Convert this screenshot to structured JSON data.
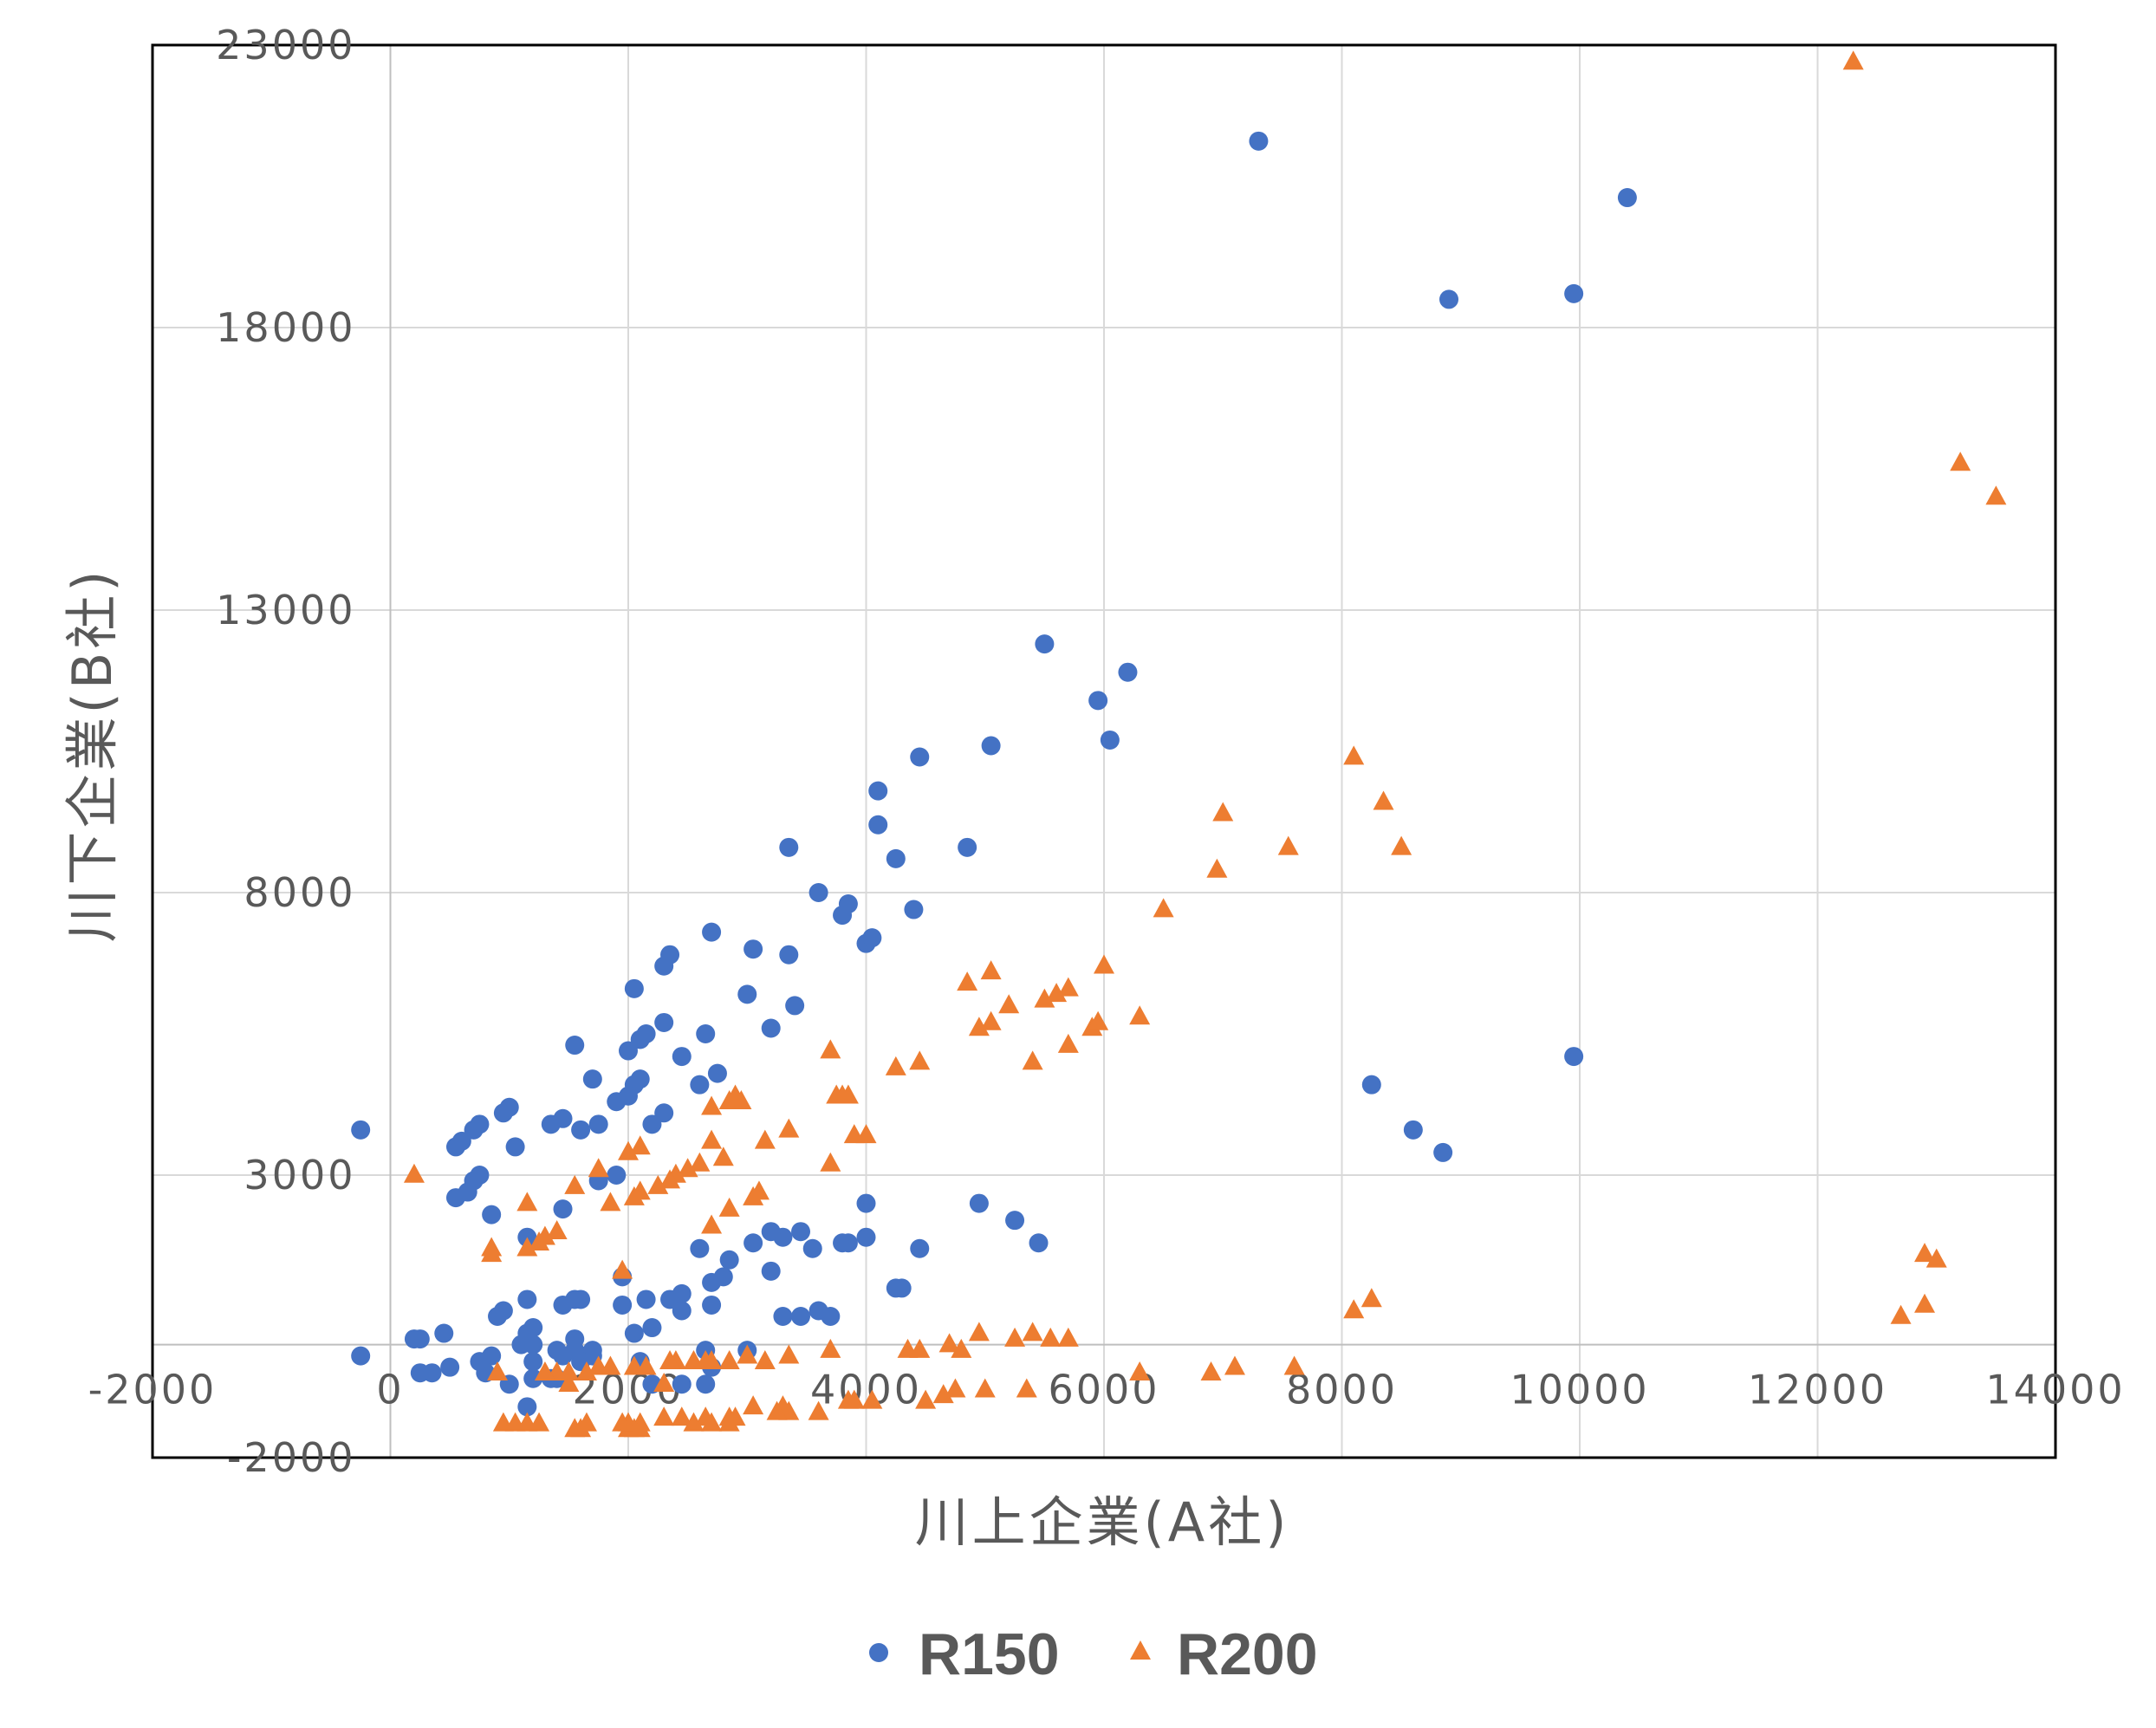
{
  "chart_data": {
    "type": "scatter",
    "title": "",
    "xlabel": "川上企業(A社)",
    "ylabel": "川下企業(B社)",
    "xlim": [
      -2000,
      14000
    ],
    "ylim": [
      -2000,
      23000
    ],
    "x_ticks": [
      -2000,
      0,
      2000,
      4000,
      6000,
      8000,
      10000,
      12000,
      14000
    ],
    "y_ticks": [
      -2000,
      3000,
      8000,
      13000,
      18000,
      23000
    ],
    "x_tick_labels": [
      "-2000",
      "0",
      "2000",
      "4000",
      "6000",
      "8000",
      "10000",
      "12000",
      "14000"
    ],
    "y_tick_labels": [
      "-2000",
      "3000",
      "8000",
      "13000",
      "18000",
      "23000"
    ],
    "grid": true,
    "legend_position": "bottom",
    "colors": {
      "R150": "#4472C4",
      "R200": "#ED7D31"
    },
    "series": [
      {
        "name": "R150",
        "marker": "circle",
        "points": [
          [
            7300,
            21300
          ],
          [
            10400,
            20300
          ],
          [
            9950,
            18600
          ],
          [
            8900,
            18500
          ],
          [
            5500,
            12400
          ],
          [
            6200,
            11900
          ],
          [
            5950,
            11400
          ],
          [
            6050,
            10700
          ],
          [
            5050,
            10600
          ],
          [
            4450,
            10400
          ],
          [
            4100,
            9800
          ],
          [
            4100,
            9200
          ],
          [
            4850,
            8800
          ],
          [
            4250,
            8600
          ],
          [
            3350,
            8800
          ],
          [
            3600,
            8000
          ],
          [
            3850,
            7800
          ],
          [
            3800,
            7600
          ],
          [
            4400,
            7700
          ],
          [
            4000,
            7100
          ],
          [
            4050,
            7200
          ],
          [
            3350,
            6900
          ],
          [
            3050,
            7000
          ],
          [
            2700,
            7300
          ],
          [
            2350,
            6900
          ],
          [
            2300,
            6700
          ],
          [
            2050,
            6300
          ],
          [
            3000,
            6200
          ],
          [
            3400,
            6000
          ],
          [
            3200,
            5600
          ],
          [
            2650,
            5500
          ],
          [
            2300,
            5700
          ],
          [
            2150,
            5500
          ],
          [
            2100,
            5400
          ],
          [
            2000,
            5200
          ],
          [
            2450,
            5100
          ],
          [
            1550,
            5300
          ],
          [
            2600,
            4600
          ],
          [
            2750,
            4800
          ],
          [
            2050,
            4600
          ],
          [
            1700,
            4700
          ],
          [
            2100,
            4700
          ],
          [
            2000,
            4400
          ],
          [
            1900,
            4300
          ],
          [
            2300,
            4100
          ],
          [
            2200,
            3900
          ],
          [
            1750,
            3900
          ],
          [
            1600,
            3800
          ],
          [
            1450,
            4000
          ],
          [
            1350,
            3900
          ],
          [
            1000,
            4200
          ],
          [
            950,
            4100
          ],
          [
            750,
            3900
          ],
          [
            700,
            3800
          ],
          [
            600,
            3600
          ],
          [
            550,
            3500
          ],
          [
            1050,
            3500
          ],
          [
            -250,
            3800
          ],
          [
            1900,
            3000
          ],
          [
            1750,
            2900
          ],
          [
            750,
            3000
          ],
          [
            700,
            2900
          ],
          [
            650,
            2700
          ],
          [
            550,
            2600
          ],
          [
            850,
            2300
          ],
          [
            1450,
            2400
          ],
          [
            1150,
            1900
          ],
          [
            2600,
            1700
          ],
          [
            2850,
            1500
          ],
          [
            3050,
            1800
          ],
          [
            3300,
            1900
          ],
          [
            3450,
            2000
          ],
          [
            3200,
            2000
          ],
          [
            3550,
            1700
          ],
          [
            3800,
            1800
          ],
          [
            3850,
            1800
          ],
          [
            4000,
            1900
          ],
          [
            3200,
            1300
          ],
          [
            2700,
            1100
          ],
          [
            2800,
            1200
          ],
          [
            1950,
            1200
          ],
          [
            4000,
            2500
          ],
          [
            4950,
            2500
          ],
          [
            5250,
            2200
          ],
          [
            5450,
            1800
          ],
          [
            4450,
            1700
          ],
          [
            4300,
            1000
          ],
          [
            4250,
            1000
          ],
          [
            1950,
            700
          ],
          [
            2150,
            800
          ],
          [
            2350,
            800
          ],
          [
            2450,
            900
          ],
          [
            2700,
            700
          ],
          [
            2450,
            600
          ],
          [
            1150,
            800
          ],
          [
            1600,
            800
          ],
          [
            1550,
            800
          ],
          [
            1450,
            700
          ],
          [
            950,
            600
          ],
          [
            900,
            500
          ],
          [
            1200,
            300
          ],
          [
            3300,
            500
          ],
          [
            3450,
            500
          ],
          [
            3600,
            600
          ],
          [
            3700,
            500
          ],
          [
            2050,
            200
          ],
          [
            2200,
            300
          ],
          [
            1700,
            -100
          ],
          [
            1550,
            -100
          ],
          [
            1400,
            -100
          ],
          [
            1700,
            -200
          ],
          [
            1550,
            100
          ],
          [
            1450,
            -200
          ],
          [
            1600,
            -300
          ],
          [
            850,
            -200
          ],
          [
            750,
            -300
          ],
          [
            500,
            -400
          ],
          [
            350,
            -500
          ],
          [
            250,
            -500
          ],
          [
            1200,
            0
          ],
          [
            1150,
            200
          ],
          [
            1100,
            0
          ],
          [
            800,
            -500
          ],
          [
            450,
            200
          ],
          [
            250,
            100
          ],
          [
            200,
            100
          ],
          [
            -250,
            -200
          ],
          [
            1150,
            -1100
          ],
          [
            1200,
            -600
          ],
          [
            1000,
            -700
          ],
          [
            1400,
            -600
          ],
          [
            1350,
            -600
          ],
          [
            2200,
            -700
          ],
          [
            2450,
            -700
          ],
          [
            2650,
            -700
          ],
          [
            2700,
            -400
          ],
          [
            2100,
            -300
          ],
          [
            3000,
            -100
          ],
          [
            2650,
            -100
          ],
          [
            8250,
            4600
          ],
          [
            8600,
            3800
          ],
          [
            8850,
            3400
          ],
          [
            9950,
            5100
          ],
          [
            1200,
            -300
          ]
        ]
      },
      {
        "name": "R200",
        "marker": "triangle",
        "points": [
          [
            12300,
            22700
          ],
          [
            13200,
            15600
          ],
          [
            13500,
            15000
          ],
          [
            8100,
            10400
          ],
          [
            8350,
            9600
          ],
          [
            8500,
            8800
          ],
          [
            7000,
            9400
          ],
          [
            6950,
            8400
          ],
          [
            7550,
            8800
          ],
          [
            6500,
            7700
          ],
          [
            6000,
            6700
          ],
          [
            5700,
            6300
          ],
          [
            5600,
            6200
          ],
          [
            5500,
            6100
          ],
          [
            5200,
            6000
          ],
          [
            5050,
            6600
          ],
          [
            4850,
            6400
          ],
          [
            5050,
            5700
          ],
          [
            4950,
            5600
          ],
          [
            5400,
            5000
          ],
          [
            5700,
            5300
          ],
          [
            5900,
            5600
          ],
          [
            5950,
            5700
          ],
          [
            6300,
            5800
          ],
          [
            4450,
            5000
          ],
          [
            4250,
            4900
          ],
          [
            3700,
            5200
          ],
          [
            3850,
            4400
          ],
          [
            3800,
            4400
          ],
          [
            3750,
            4400
          ],
          [
            4000,
            3700
          ],
          [
            3900,
            3700
          ],
          [
            3700,
            3200
          ],
          [
            3350,
            3800
          ],
          [
            3150,
            3600
          ],
          [
            2950,
            4300
          ],
          [
            2900,
            4400
          ],
          [
            2850,
            4300
          ],
          [
            2700,
            4200
          ],
          [
            2700,
            3600
          ],
          [
            2800,
            3300
          ],
          [
            2600,
            3200
          ],
          [
            2500,
            3100
          ],
          [
            2400,
            3000
          ],
          [
            2350,
            2900
          ],
          [
            2250,
            2800
          ],
          [
            2100,
            2700
          ],
          [
            2050,
            2600
          ],
          [
            1850,
            2500
          ],
          [
            1550,
            2800
          ],
          [
            2100,
            3500
          ],
          [
            2000,
            3400
          ],
          [
            1150,
            2500
          ],
          [
            1400,
            2000
          ],
          [
            1300,
            1900
          ],
          [
            1250,
            1800
          ],
          [
            1150,
            1700
          ],
          [
            850,
            1700
          ],
          [
            850,
            1600
          ],
          [
            3100,
            2700
          ],
          [
            3050,
            2600
          ],
          [
            2850,
            2400
          ],
          [
            2700,
            2100
          ],
          [
            1950,
            1300
          ],
          [
            1750,
            3100
          ],
          [
            200,
            3000
          ],
          [
            8100,
            600
          ],
          [
            8250,
            800
          ],
          [
            12900,
            1600
          ],
          [
            13000,
            1500
          ],
          [
            12900,
            700
          ],
          [
            12700,
            500
          ],
          [
            4350,
            -100
          ],
          [
            4450,
            -100
          ],
          [
            4700,
            0
          ],
          [
            4800,
            -100
          ],
          [
            4950,
            200
          ],
          [
            5250,
            100
          ],
          [
            5400,
            200
          ],
          [
            5550,
            100
          ],
          [
            5700,
            100
          ],
          [
            6300,
            -500
          ],
          [
            6900,
            -500
          ],
          [
            7100,
            -400
          ],
          [
            7600,
            -400
          ],
          [
            3700,
            -100
          ],
          [
            3350,
            -200
          ],
          [
            3150,
            -300
          ],
          [
            3000,
            -200
          ],
          [
            2850,
            -300
          ],
          [
            2700,
            -300
          ],
          [
            2650,
            -300
          ],
          [
            2550,
            -300
          ],
          [
            2400,
            -300
          ],
          [
            2350,
            -300
          ],
          [
            2150,
            -400
          ],
          [
            2050,
            -400
          ],
          [
            1850,
            -400
          ],
          [
            1750,
            -400
          ],
          [
            1650,
            -500
          ],
          [
            1500,
            -500
          ],
          [
            1400,
            -500
          ],
          [
            1300,
            -500
          ],
          [
            900,
            -500
          ],
          [
            1500,
            -700
          ],
          [
            2300,
            -700
          ],
          [
            4050,
            -1000
          ],
          [
            3900,
            -1000
          ],
          [
            3850,
            -1000
          ],
          [
            4500,
            -1000
          ],
          [
            4650,
            -900
          ],
          [
            4750,
            -800
          ],
          [
            5000,
            -800
          ],
          [
            5350,
            -800
          ],
          [
            3300,
            -1100
          ],
          [
            3050,
            -1100
          ],
          [
            2650,
            -1300
          ],
          [
            2450,
            -1300
          ],
          [
            3350,
            -1200
          ],
          [
            3600,
            -1200
          ],
          [
            2900,
            -1300
          ],
          [
            2300,
            -1300
          ],
          [
            2100,
            -1400
          ],
          [
            2000,
            -1400
          ],
          [
            1650,
            -1400
          ],
          [
            1550,
            -1500
          ],
          [
            1250,
            -1400
          ],
          [
            1150,
            -1400
          ],
          [
            1050,
            -1400
          ],
          [
            950,
            -1400
          ],
          [
            2100,
            -1500
          ],
          [
            2050,
            -1500
          ],
          [
            2000,
            -1500
          ],
          [
            1950,
            -1400
          ],
          [
            1600,
            -1500
          ],
          [
            2550,
            -1400
          ],
          [
            2850,
            -1400
          ],
          [
            2700,
            -1400
          ],
          [
            2850,
            -1300
          ],
          [
            3250,
            -1200
          ]
        ]
      }
    ]
  }
}
